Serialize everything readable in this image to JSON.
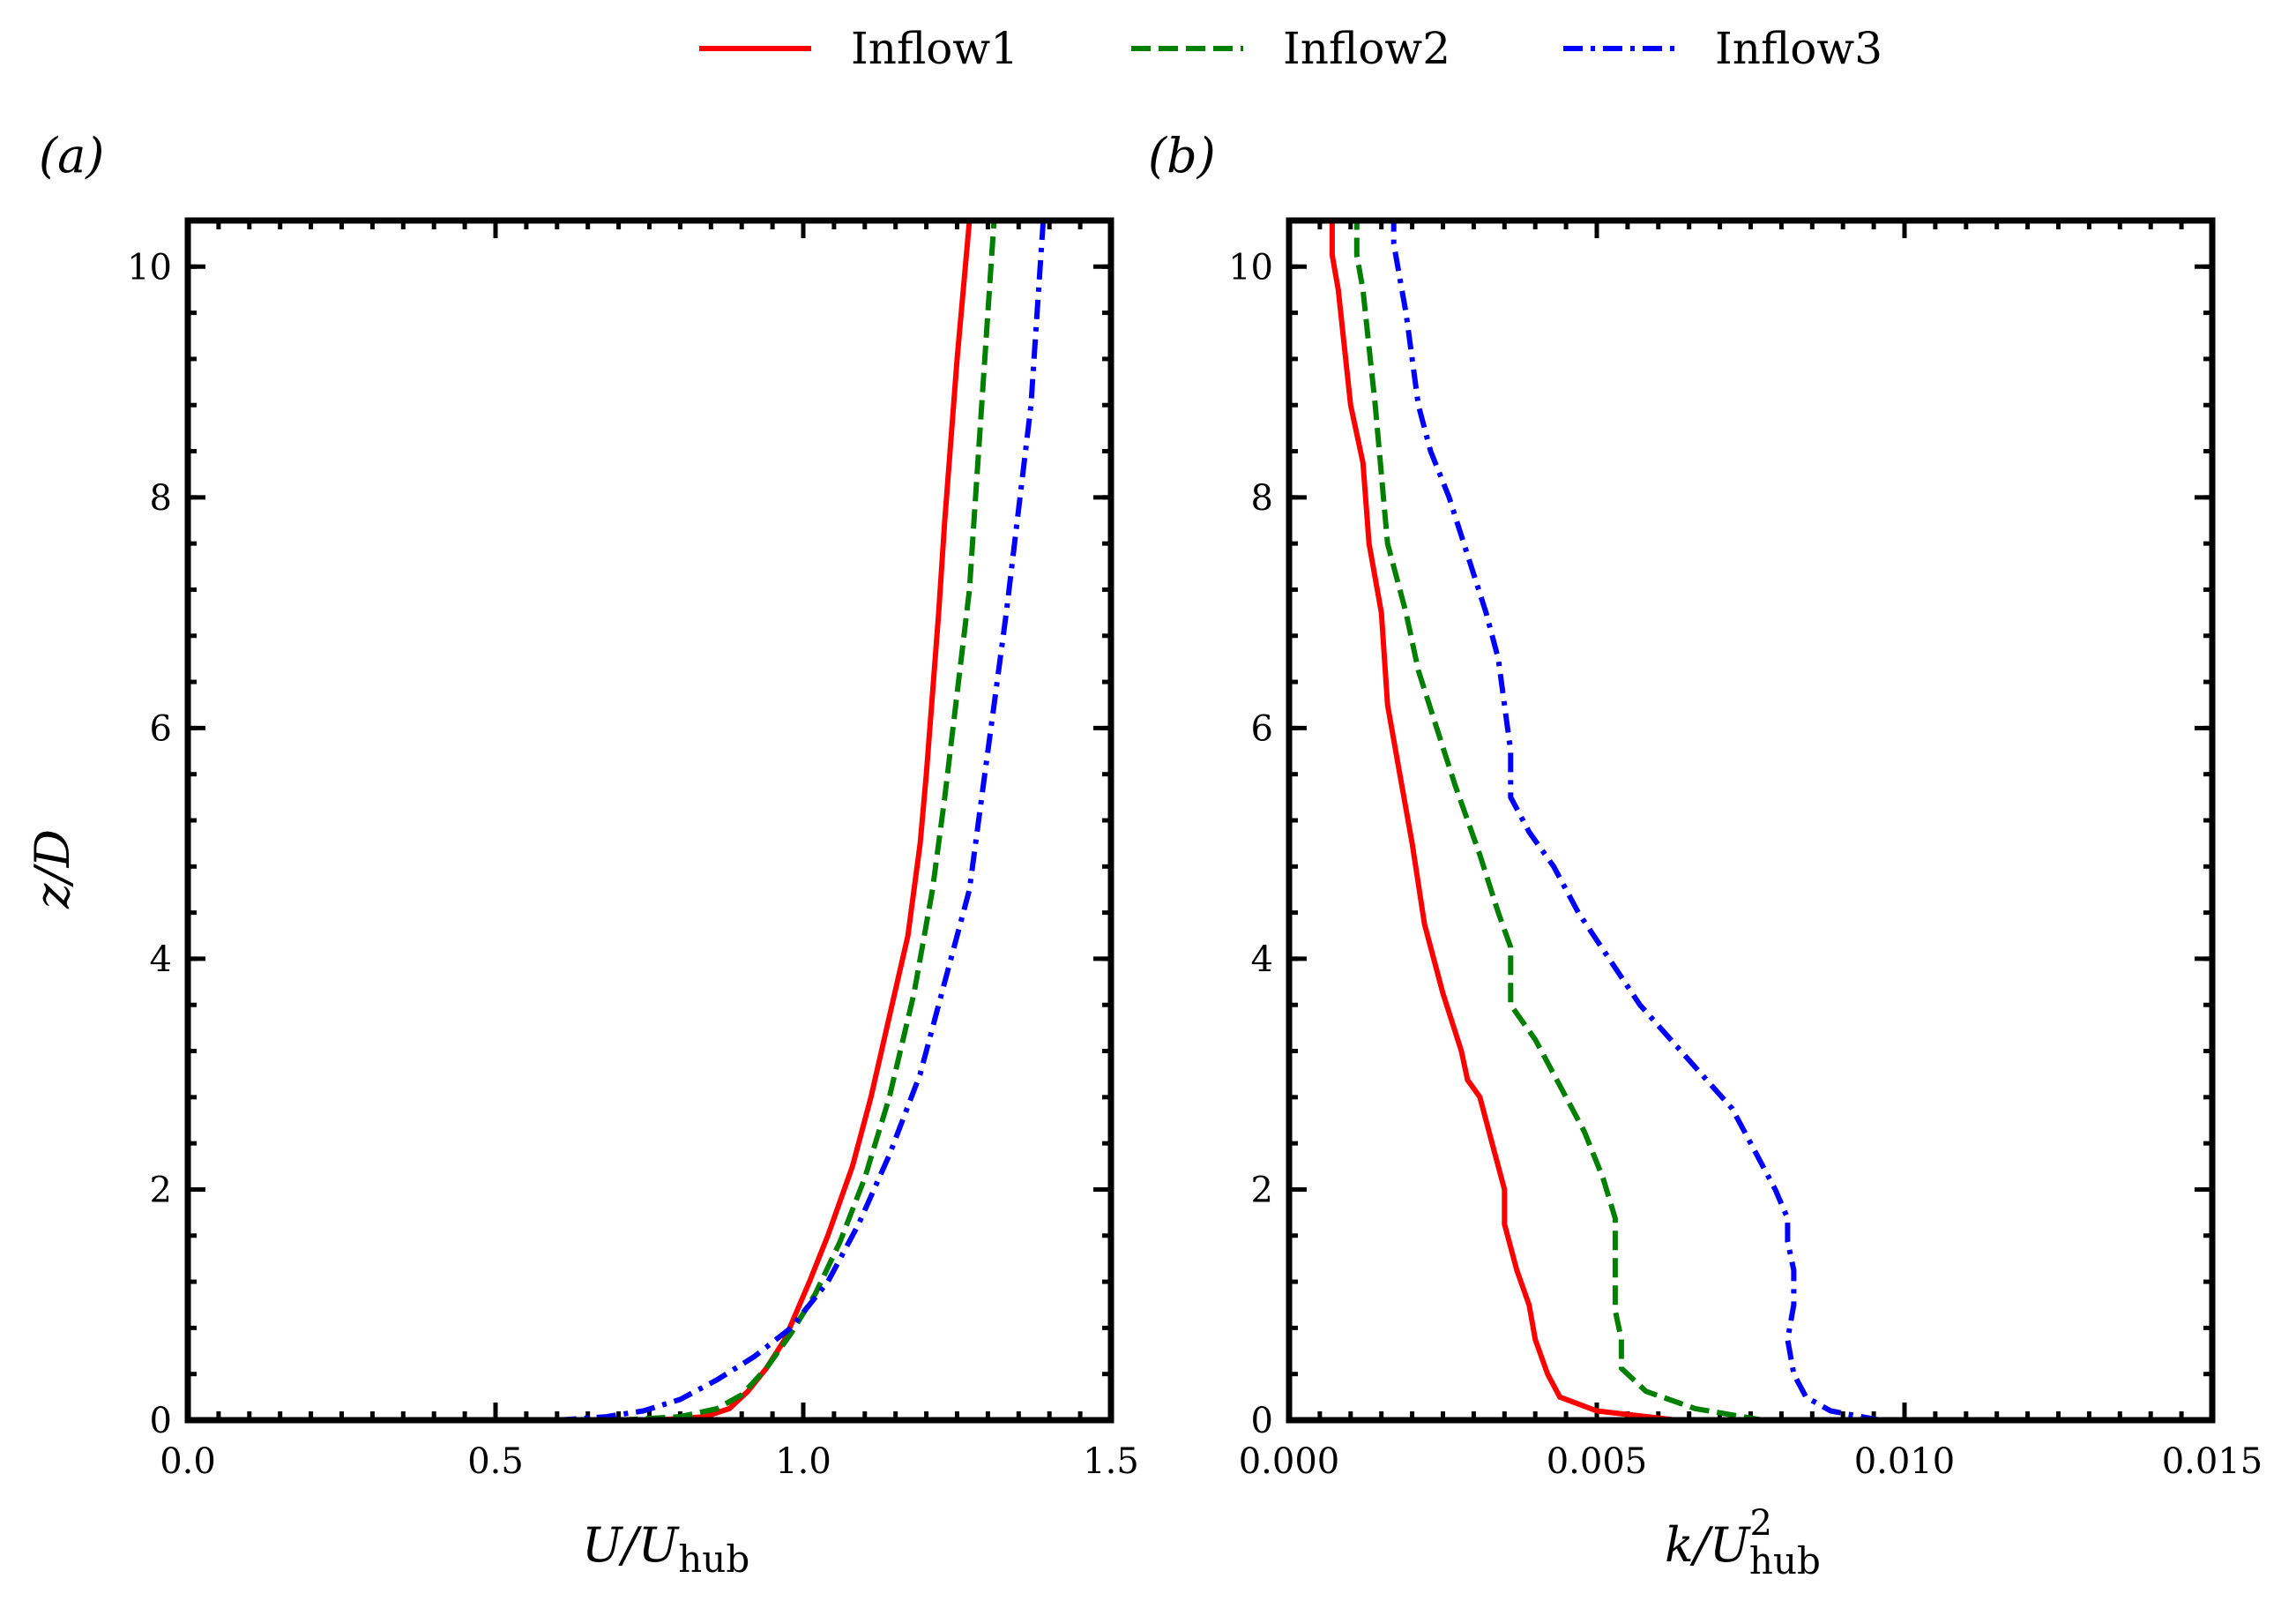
{
  "legend": {
    "entries": [
      {
        "name": "Inflow1",
        "color": "#ff0000",
        "dash": "solid"
      },
      {
        "name": "Inflow2",
        "color": "#007f00",
        "dash": "dashed"
      },
      {
        "name": "Inflow3",
        "color": "#0000ff",
        "dash": "dashdot"
      }
    ]
  },
  "chart_data": [
    {
      "type": "line",
      "panel_label": "(a)",
      "xlabel_main": "U/U",
      "xlabel_sub": "hub",
      "ylabel": "z/D",
      "xlim": [
        0.0,
        1.5
      ],
      "ylim": [
        0,
        10.4
      ],
      "xticks": [
        0.0,
        0.5,
        1.0,
        1.5
      ],
      "xtick_labels": [
        "0.0",
        "0.5",
        "1.0",
        "1.5"
      ],
      "yticks": [
        0,
        2,
        4,
        6,
        8,
        10
      ],
      "ytick_labels": [
        "0",
        "2",
        "4",
        "6",
        "8",
        "10"
      ],
      "series": [
        {
          "name": "Inflow1",
          "x": [
            0.76,
            0.84,
            0.88,
            0.91,
            0.94,
            0.97,
            0.99,
            1.01,
            1.04,
            1.08,
            1.11,
            1.14,
            1.17,
            1.19,
            1.2,
            1.21,
            1.22,
            1.23,
            1.24,
            1.25,
            1.26,
            1.27
          ],
          "y": [
            0.0,
            0.03,
            0.1,
            0.25,
            0.45,
            0.7,
            0.95,
            1.2,
            1.6,
            2.2,
            2.8,
            3.5,
            4.2,
            5.0,
            5.6,
            6.3,
            7.0,
            7.8,
            8.5,
            9.2,
            9.8,
            10.4
          ]
        },
        {
          "name": "Inflow2",
          "x": [
            0.7,
            0.8,
            0.86,
            0.9,
            0.94,
            0.98,
            1.02,
            1.06,
            1.1,
            1.14,
            1.18,
            1.21,
            1.23,
            1.25,
            1.27,
            1.28,
            1.29,
            1.3,
            1.31
          ],
          "y": [
            0.0,
            0.03,
            0.1,
            0.22,
            0.45,
            0.75,
            1.1,
            1.55,
            2.1,
            2.8,
            3.7,
            4.6,
            5.4,
            6.3,
            7.2,
            8.0,
            8.8,
            9.6,
            10.4
          ]
        },
        {
          "name": "Inflow3",
          "x": [
            0.6,
            0.68,
            0.74,
            0.8,
            0.86,
            0.92,
            0.98,
            1.04,
            1.09,
            1.14,
            1.19,
            1.23,
            1.27,
            1.29,
            1.31,
            1.33,
            1.35,
            1.37,
            1.38,
            1.39
          ],
          "y": [
            0.0,
            0.03,
            0.08,
            0.18,
            0.35,
            0.55,
            0.8,
            1.2,
            1.7,
            2.3,
            3.0,
            3.8,
            4.6,
            5.4,
            6.2,
            7.0,
            7.9,
            8.8,
            9.6,
            10.4
          ]
        }
      ]
    },
    {
      "type": "line",
      "panel_label": "(b)",
      "xlabel_main": "k/U",
      "xlabel_sup": "2",
      "xlabel_sub": "hub",
      "ylabel": "",
      "xlim": [
        0.0,
        0.015
      ],
      "ylim": [
        0,
        10.4
      ],
      "xticks": [
        0.0,
        0.005,
        0.01,
        0.015
      ],
      "xtick_labels": [
        "0.000",
        "0.005",
        "0.010",
        "0.015"
      ],
      "yticks": [
        0,
        2,
        4,
        6,
        8,
        10
      ],
      "ytick_labels": [
        "0",
        "2",
        "4",
        "6",
        "8",
        "10"
      ],
      "series": [
        {
          "name": "Inflow1",
          "x": [
            0.0063,
            0.005,
            0.0044,
            0.0042,
            0.004,
            0.0039,
            0.0037,
            0.0035,
            0.0035,
            0.0033,
            0.0031,
            0.0029,
            0.0028,
            0.0025,
            0.0022,
            0.002,
            0.0018,
            0.0016,
            0.0015,
            0.0013,
            0.0012,
            0.001,
            0.0009,
            0.0008,
            0.0007,
            0.0007
          ],
          "y": [
            0.0,
            0.08,
            0.2,
            0.4,
            0.7,
            1.0,
            1.3,
            1.7,
            2.0,
            2.4,
            2.8,
            2.95,
            3.2,
            3.7,
            4.3,
            5.0,
            5.6,
            6.2,
            7.0,
            7.6,
            8.3,
            8.8,
            9.3,
            9.8,
            10.1,
            10.4
          ]
        },
        {
          "name": "Inflow2",
          "x": [
            0.0077,
            0.0066,
            0.0058,
            0.0054,
            0.0054,
            0.0053,
            0.0053,
            0.0053,
            0.0053,
            0.0051,
            0.0048,
            0.0045,
            0.004,
            0.0036,
            0.0036,
            0.0036,
            0.0034,
            0.0031,
            0.0027,
            0.0024,
            0.0021,
            0.0019,
            0.0016,
            0.0015,
            0.0014,
            0.0013,
            0.0012,
            0.0011,
            0.0011
          ],
          "y": [
            0.0,
            0.1,
            0.25,
            0.45,
            0.7,
            0.95,
            1.25,
            1.5,
            1.75,
            2.1,
            2.5,
            2.8,
            3.3,
            3.6,
            3.8,
            4.1,
            4.4,
            4.9,
            5.5,
            6.0,
            6.5,
            7.0,
            7.6,
            8.2,
            8.8,
            9.3,
            9.8,
            10.1,
            10.4
          ]
        },
        {
          "name": "Inflow3",
          "x": [
            0.0096,
            0.0088,
            0.0084,
            0.0082,
            0.0081,
            0.0082,
            0.0082,
            0.0081,
            0.0081,
            0.0079,
            0.0076,
            0.0072,
            0.0067,
            0.0062,
            0.0057,
            0.0052,
            0.0047,
            0.0043,
            0.0039,
            0.0036,
            0.0036,
            0.0035,
            0.0034,
            0.0032,
            0.0029,
            0.0026,
            0.0023,
            0.0021,
            0.002,
            0.0019,
            0.0018,
            0.0017,
            0.0017
          ],
          "y": [
            0.0,
            0.08,
            0.2,
            0.4,
            0.7,
            1.0,
            1.3,
            1.55,
            1.75,
            2.0,
            2.3,
            2.7,
            3.0,
            3.3,
            3.6,
            4.0,
            4.4,
            4.8,
            5.1,
            5.4,
            5.8,
            6.2,
            6.6,
            7.0,
            7.5,
            8.0,
            8.4,
            8.8,
            9.2,
            9.6,
            9.9,
            10.2,
            10.4
          ]
        }
      ]
    }
  ]
}
